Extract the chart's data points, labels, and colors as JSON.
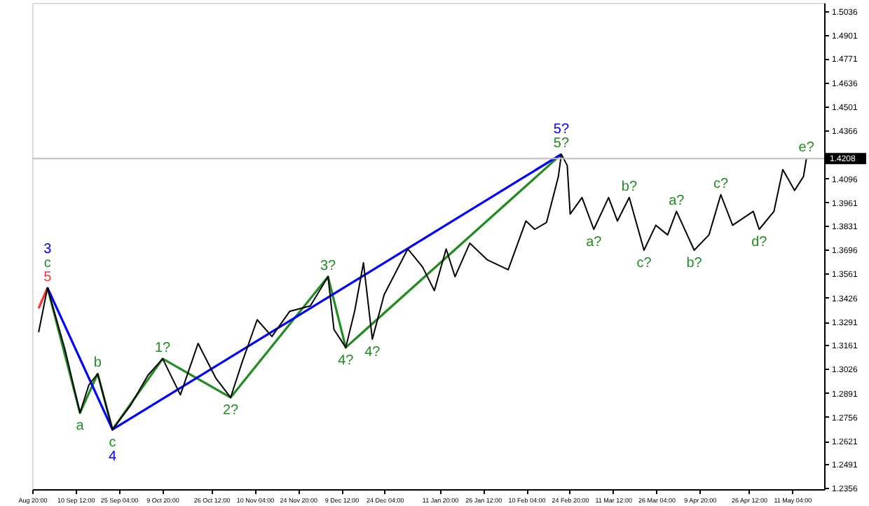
{
  "chart_data": {
    "type": "line",
    "xlim": [
      "2020-08-26T20:00",
      "2021-05-22"
    ],
    "xticks": [
      {
        "value": "2020-08-26T20:00",
        "label": "Aug 20:00"
      },
      {
        "value": "2020-09-10T12:00",
        "label": "10 Sep 12:00"
      },
      {
        "value": "2020-09-25T04:00",
        "label": "25 Sep 04:00"
      },
      {
        "value": "2020-10-09T20:00",
        "label": "9 Oct 20:00"
      },
      {
        "value": "2020-10-26T12:00",
        "label": "26 Oct 12:00"
      },
      {
        "value": "2020-11-10T04:00",
        "label": "10 Nov 04:00"
      },
      {
        "value": "2020-11-24T20:00",
        "label": "24 Nov 20:00"
      },
      {
        "value": "2020-12-09T12:00",
        "label": "9 Dec 12:00"
      },
      {
        "value": "2020-12-24T04:00",
        "label": "24 Dec 04:00"
      },
      {
        "value": "2021-01-11T20:00",
        "label": "11 Jan 20:00"
      },
      {
        "value": "2021-01-26T12:00",
        "label": "26 Jan 12:00"
      },
      {
        "value": "2021-02-10T04:00",
        "label": "10 Feb 04:00"
      },
      {
        "value": "2021-02-24T20:00",
        "label": "24 Feb 20:00"
      },
      {
        "value": "2021-03-11T12:00",
        "label": "11 Mar 12:00"
      },
      {
        "value": "2021-03-26T04:00",
        "label": "26 Mar 04:00"
      },
      {
        "value": "2021-04-09T20:00",
        "label": "9 Apr 20:00"
      },
      {
        "value": "2021-04-26T12:00",
        "label": "26 Apr 12:00"
      },
      {
        "value": "2021-05-11T04:00",
        "label": "11 May 04:00"
      }
    ],
    "ylim": [
      1.235,
      1.5083
    ],
    "yticks": [
      1.5036,
      1.4901,
      1.4771,
      1.4636,
      1.4501,
      1.4366,
      1.4096,
      1.3961,
      1.3831,
      1.3696,
      1.3561,
      1.3426,
      1.3291,
      1.3161,
      1.3026,
      1.2891,
      1.2756,
      1.2621,
      1.2491,
      1.2356
    ],
    "grid": false,
    "marker": "none",
    "line_style": "solid",
    "series": [
      {
        "color": "#000000",
        "x": [
          "2020-08-29",
          "2020-09-01",
          "2020-09-07",
          "2020-09-12",
          "2020-09-15",
          "2020-09-18",
          "2020-09-23",
          "2020-09-29",
          "2020-10-05",
          "2020-10-10",
          "2020-10-16",
          "2020-10-22",
          "2020-10-28",
          "2020-11-02",
          "2020-11-06",
          "2020-11-11",
          "2020-11-16",
          "2020-11-22",
          "2020-11-29",
          "2020-12-05",
          "2020-12-07",
          "2020-12-11",
          "2020-12-14",
          "2020-12-17",
          "2020-12-20",
          "2020-12-24",
          "2021-01-01",
          "2021-01-06",
          "2021-01-10",
          "2021-01-14",
          "2021-01-17",
          "2021-01-22",
          "2021-01-28",
          "2021-02-04",
          "2021-02-10",
          "2021-02-13",
          "2021-02-17",
          "2021-02-21",
          "2021-02-22",
          "2021-02-24",
          "2021-02-25",
          "2021-03-01",
          "2021-03-05",
          "2021-03-10",
          "2021-03-13",
          "2021-03-17",
          "2021-03-22",
          "2021-03-26",
          "2021-03-30",
          "2021-04-02",
          "2021-04-08",
          "2021-04-13",
          "2021-04-17",
          "2021-04-21",
          "2021-04-28",
          "2021-04-30",
          "2021-05-05",
          "2021-05-08",
          "2021-05-12",
          "2021-05-15",
          "2021-05-16"
        ],
        "values": [
          1.3232,
          1.3482,
          1.313,
          1.2779,
          1.2935,
          1.2998,
          1.2685,
          1.2818,
          1.299,
          1.3083,
          1.288,
          1.3169,
          1.2974,
          1.2865,
          1.3068,
          1.3302,
          1.3208,
          1.3349,
          1.338,
          1.3544,
          1.3248,
          1.3146,
          1.3349,
          1.3622,
          1.3193,
          1.3443,
          1.37,
          1.3599,
          1.3466,
          1.37,
          1.3544,
          1.3732,
          1.3638,
          1.3583,
          1.3857,
          1.381,
          1.3849,
          1.4107,
          1.4232,
          1.4169,
          1.3896,
          1.3989,
          1.381,
          1.3989,
          1.3857,
          1.3989,
          1.3693,
          1.3833,
          1.3779,
          1.3911,
          1.3693,
          1.3779,
          1.4005,
          1.3833,
          1.3911,
          1.381,
          1.3911,
          1.4146,
          1.4029,
          1.4107,
          1.4208
        ]
      },
      {
        "color": "#ff3333",
        "x": [
          "2020-08-29",
          "2020-09-01"
        ],
        "values": [
          1.3366,
          1.3482
        ]
      },
      {
        "color": "#228b22",
        "x": [
          "2020-09-01",
          "2020-09-12",
          "2020-09-18",
          "2020-09-23",
          "2020-10-10",
          "2020-11-02",
          "2020-12-05",
          "2020-12-11",
          "2021-02-22"
        ],
        "values": [
          1.3482,
          1.2779,
          1.2998,
          1.2685,
          1.3083,
          1.2865,
          1.3544,
          1.3146,
          1.4232
        ]
      },
      {
        "color": "#0000ff",
        "x": [
          "2020-09-01",
          "2020-09-23",
          "2021-02-22"
        ],
        "values": [
          1.3482,
          1.2685,
          1.4232
        ]
      }
    ],
    "ref_lines": [
      {
        "axis": "y",
        "value": 1.4208,
        "label": "1.4208",
        "color": "#c0c0c0"
      }
    ],
    "annotations": [
      {
        "text": "5",
        "x": "2020-09-01",
        "y": 1.3482
      },
      {
        "text": "c",
        "x": "2020-09-01",
        "y": 1.3482
      },
      {
        "text": "3",
        "x": "2020-09-01",
        "y": 1.3482
      },
      {
        "text": "a",
        "x": "2020-09-12",
        "y": 1.2779
      },
      {
        "text": "b",
        "x": "2020-09-18",
        "y": 1.2998
      },
      {
        "text": "c",
        "x": "2020-09-23",
        "y": 1.2685
      },
      {
        "text": "4",
        "x": "2020-09-23",
        "y": 1.2685
      },
      {
        "text": "1?",
        "x": "2020-10-10",
        "y": 1.3083
      },
      {
        "text": "2?",
        "x": "2020-11-02",
        "y": 1.2865
      },
      {
        "text": "3?",
        "x": "2020-12-05",
        "y": 1.3544
      },
      {
        "text": "4?",
        "x": "2020-12-11",
        "y": 1.3146
      },
      {
        "text": "4?",
        "x": "2020-12-20",
        "y": 1.3193
      },
      {
        "text": "5?",
        "x": "2021-02-22",
        "y": 1.4232
      },
      {
        "text": "5?",
        "x": "2021-02-22",
        "y": 1.4232
      },
      {
        "text": "a?",
        "x": "2021-03-05",
        "y": 1.381
      },
      {
        "text": "b?",
        "x": "2021-03-17",
        "y": 1.3989
      },
      {
        "text": "c?",
        "x": "2021-03-22",
        "y": 1.3693
      },
      {
        "text": "a?",
        "x": "2021-04-02",
        "y": 1.3911
      },
      {
        "text": "b?",
        "x": "2021-04-08",
        "y": 1.3693
      },
      {
        "text": "c?",
        "x": "2021-04-17",
        "y": 1.4005
      },
      {
        "text": "d?",
        "x": "2021-04-30",
        "y": 1.381
      },
      {
        "text": "e?",
        "x": "2021-05-16",
        "y": 1.4208
      }
    ]
  }
}
